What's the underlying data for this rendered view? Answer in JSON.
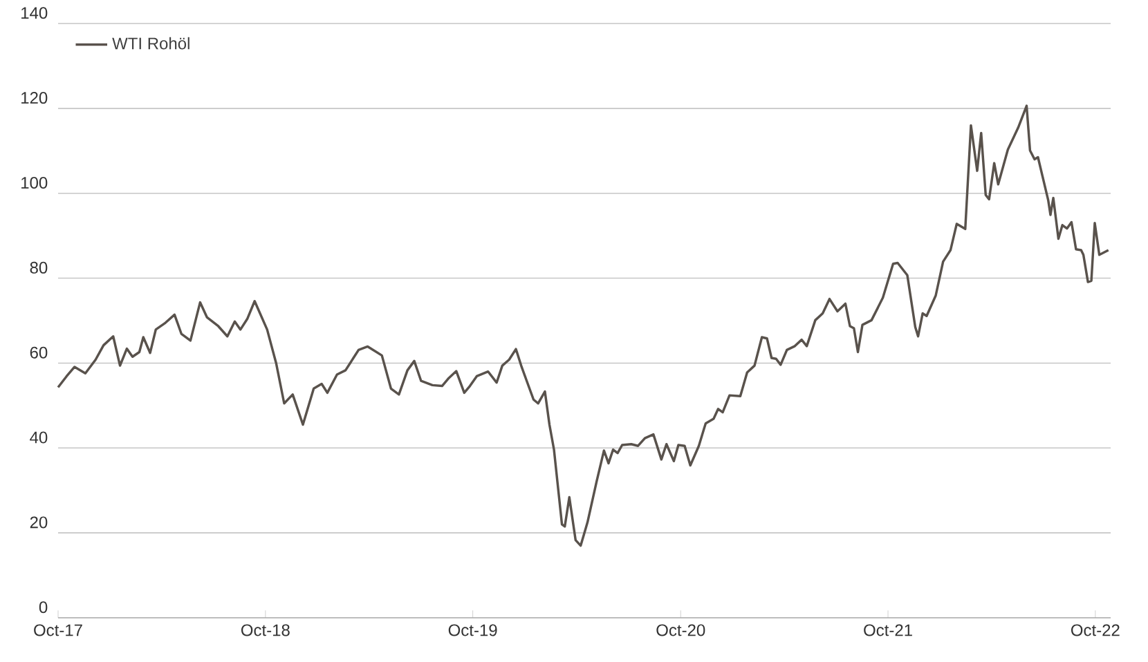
{
  "chart_data": {
    "type": "line",
    "x": [
      "2017-10-01",
      "2017-10-16",
      "2017-10-30",
      "2017-11-18",
      "2017-12-06",
      "2017-12-20",
      "2018-01-06",
      "2018-01-18",
      "2018-01-30",
      "2018-02-09",
      "2018-02-21",
      "2018-02-28",
      "2018-03-12",
      "2018-03-22",
      "2018-04-08",
      "2018-04-24",
      "2018-05-06",
      "2018-05-22",
      "2018-06-08",
      "2018-06-20",
      "2018-07-10",
      "2018-07-26",
      "2018-08-08",
      "2018-08-18",
      "2018-08-30",
      "2018-09-12",
      "2018-10-04",
      "2018-10-20",
      "2018-11-03",
      "2018-11-18",
      "2018-12-06",
      "2018-12-25",
      "2019-01-08",
      "2019-01-18",
      "2019-02-04",
      "2019-02-19",
      "2019-03-14",
      "2019-03-30",
      "2019-04-24",
      "2019-05-10",
      "2019-05-24",
      "2019-06-08",
      "2019-06-20",
      "2019-07-02",
      "2019-07-22",
      "2019-08-08",
      "2019-08-20",
      "2019-09-02",
      "2019-09-16",
      "2019-09-26",
      "2019-10-08",
      "2019-10-28",
      "2019-11-12",
      "2019-11-22",
      "2019-12-04",
      "2019-12-16",
      "2019-12-26",
      "2020-01-16",
      "2020-01-24",
      "2020-02-05",
      "2020-02-13",
      "2020-02-21",
      "2020-03-06",
      "2020-03-11",
      "2020-03-19",
      "2020-03-30",
      "2020-04-08",
      "2020-04-20",
      "2020-05-06",
      "2020-05-19",
      "2020-05-27",
      "2020-06-04",
      "2020-06-12",
      "2020-06-20",
      "2020-07-06",
      "2020-07-18",
      "2020-07-30",
      "2020-08-14",
      "2020-08-28",
      "2020-09-06",
      "2020-09-19",
      "2020-09-27",
      "2020-10-08",
      "2020-10-18",
      "2020-11-02",
      "2020-11-14",
      "2020-11-28",
      "2020-12-06",
      "2020-12-14",
      "2020-12-26",
      "2021-01-14",
      "2021-01-26",
      "2021-02-08",
      "2021-02-21",
      "2021-03-02",
      "2021-03-10",
      "2021-03-18",
      "2021-03-26",
      "2021-04-06",
      "2021-04-20",
      "2021-05-02",
      "2021-05-11",
      "2021-05-26",
      "2021-06-08",
      "2021-06-20",
      "2021-07-04",
      "2021-07-18",
      "2021-07-26",
      "2021-08-02",
      "2021-08-09",
      "2021-08-17",
      "2021-09-02",
      "2021-09-22",
      "2021-10-10",
      "2021-10-18",
      "2021-11-04",
      "2021-11-18",
      "2021-11-23",
      "2021-12-01",
      "2021-12-08",
      "2021-12-24",
      "2022-01-06",
      "2022-01-19",
      "2022-01-30",
      "2022-02-14",
      "2022-02-24",
      "2022-03-07",
      "2022-03-14",
      "2022-03-22",
      "2022-03-28",
      "2022-04-06",
      "2022-04-13",
      "2022-04-30",
      "2022-05-18",
      "2022-06-02",
      "2022-06-08",
      "2022-06-16",
      "2022-06-22",
      "2022-07-10",
      "2022-07-14",
      "2022-07-19",
      "2022-07-28",
      "2022-08-04",
      "2022-08-12",
      "2022-08-20",
      "2022-08-28",
      "2022-09-06",
      "2022-09-10",
      "2022-09-18",
      "2022-09-24",
      "2022-09-30",
      "2022-10-08",
      "2022-10-24"
    ],
    "series": [
      {
        "name": "WTI Rohöl",
        "color": "#59524c",
        "values": [
          54.3,
          56.9,
          59.1,
          57.6,
          60.8,
          64.2,
          66.3,
          59.4,
          63.4,
          61.5,
          62.6,
          66.1,
          62.4,
          67.9,
          69.5,
          71.4,
          66.9,
          65.3,
          74.3,
          70.8,
          68.7,
          66.3,
          69.8,
          67.9,
          70.4,
          74.6,
          67.9,
          59.9,
          50.5,
          52.6,
          45.5,
          54.0,
          55.1,
          53.0,
          57.3,
          58.3,
          63.1,
          63.9,
          61.8,
          54.0,
          52.6,
          58.3,
          60.5,
          55.8,
          54.8,
          54.6,
          56.5,
          58.1,
          53.0,
          54.6,
          56.9,
          58.0,
          55.4,
          59.4,
          60.8,
          63.3,
          59.1,
          51.4,
          50.5,
          53.3,
          45.5,
          39.6,
          22.0,
          21.5,
          28.4,
          18.3,
          17.0,
          22.5,
          32.1,
          39.4,
          36.4,
          39.6,
          38.8,
          40.7,
          40.9,
          40.5,
          42.3,
          43.2,
          37.3,
          40.9,
          36.9,
          40.7,
          40.5,
          35.9,
          40.5,
          45.8,
          46.9,
          49.2,
          48.4,
          52.4,
          52.2,
          57.8,
          59.4,
          66.1,
          65.8,
          61.2,
          61.0,
          59.6,
          63.1,
          64.0,
          65.5,
          64.0,
          70.1,
          71.7,
          75.1,
          72.2,
          74.0,
          68.7,
          68.2,
          62.6,
          69.0,
          70.1,
          75.4,
          83.4,
          83.6,
          80.7,
          68.5,
          66.3,
          71.7,
          71.1,
          75.9,
          83.9,
          86.6,
          92.8,
          91.6,
          116.0,
          105.3,
          114.2,
          99.6,
          98.6,
          107.1,
          102.1,
          110.3,
          115.4,
          120.6,
          110.1,
          108.0,
          108.5,
          98.4,
          94.9,
          98.9,
          89.3,
          92.5,
          91.7,
          93.2,
          86.8,
          86.6,
          85.5,
          79.1,
          79.4,
          93.0,
          85.5,
          86.6
        ]
      }
    ],
    "xlim": [
      "2017-10-01",
      "2022-10-28"
    ],
    "xticks": [
      {
        "value": "2017-10-01",
        "label": "Oct-17"
      },
      {
        "value": "2018-10-01",
        "label": "Oct-18"
      },
      {
        "value": "2019-10-01",
        "label": "Oct-19"
      },
      {
        "value": "2020-10-01",
        "label": "Oct-20"
      },
      {
        "value": "2021-10-01",
        "label": "Oct-21"
      },
      {
        "value": "2022-10-01",
        "label": "Oct-22"
      }
    ],
    "ylim": [
      0,
      140
    ],
    "yticks": [
      0,
      20,
      40,
      60,
      80,
      100,
      120,
      140
    ],
    "grid": "y",
    "legend": "top left"
  }
}
